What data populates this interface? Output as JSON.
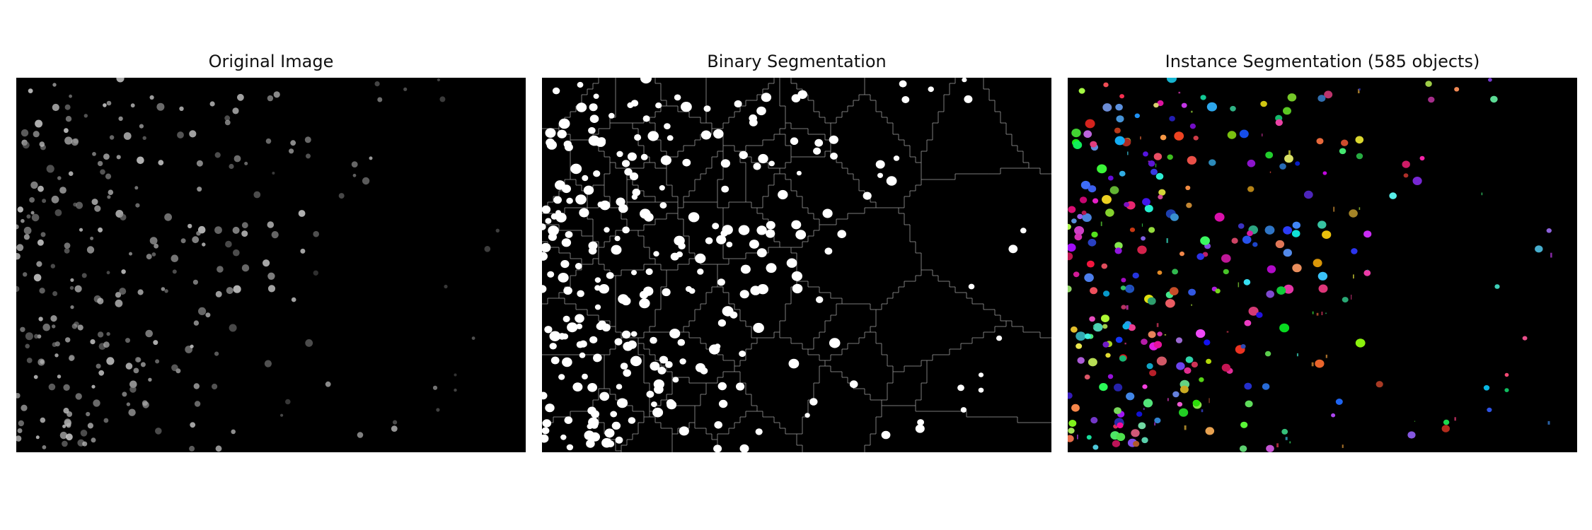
{
  "figure": {
    "panels": [
      {
        "id": "original",
        "title": "Original Image"
      },
      {
        "id": "binary",
        "title": "Binary Segmentation"
      },
      {
        "id": "instance",
        "title": "Instance Segmentation (585 objects)"
      }
    ]
  },
  "colors": {
    "background": "#000000",
    "foreground": "#ffffff",
    "page": "#ffffff"
  }
}
